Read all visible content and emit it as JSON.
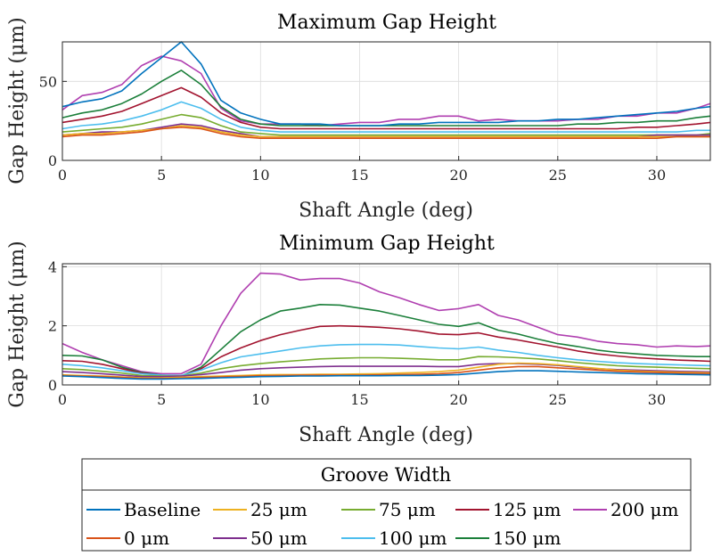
{
  "chart_data": [
    {
      "type": "line",
      "title": "Maximum Gap Height",
      "xlabel": "Shaft Angle (deg)",
      "ylabel": "Gap Height (μm)",
      "xlim": [
        0,
        32.7
      ],
      "ylim": [
        0,
        75
      ],
      "xticks": [
        0,
        5,
        10,
        15,
        20,
        25,
        30
      ],
      "yticks": [
        0,
        50
      ],
      "grid": true,
      "x": [
        0,
        1,
        2,
        3,
        4,
        5,
        6,
        7,
        8,
        9,
        10,
        11,
        12,
        13,
        14,
        15,
        16,
        17,
        18,
        19,
        20,
        21,
        22,
        23,
        24,
        25,
        26,
        27,
        28,
        29,
        30,
        31,
        32,
        32.7
      ],
      "series": [
        {
          "name": "Baseline",
          "color": "#0072BD",
          "values": [
            34,
            37,
            39,
            44,
            55,
            65,
            75,
            61,
            38,
            30,
            26,
            23,
            23,
            23,
            22,
            22,
            22,
            23,
            23,
            24,
            24,
            24,
            24,
            25,
            25,
            26,
            26,
            27,
            28,
            29,
            30,
            31,
            33,
            34
          ]
        },
        {
          "name": "0 μm",
          "color": "#D95319",
          "values": [
            15,
            16,
            16,
            17,
            18,
            20,
            21,
            20,
            17,
            15,
            14,
            14,
            14,
            14,
            14,
            14,
            14,
            14,
            14,
            14,
            14,
            14,
            14,
            14,
            14,
            14,
            14,
            14,
            14,
            14,
            14,
            15,
            15,
            15
          ]
        },
        {
          "name": "25 μm",
          "color": "#EDB120",
          "values": [
            16,
            17,
            17,
            18,
            19,
            20,
            22,
            21,
            18,
            16,
            15,
            15,
            15,
            15,
            15,
            15,
            15,
            15,
            15,
            15,
            15,
            15,
            15,
            15,
            15,
            15,
            15,
            15,
            15,
            15,
            15,
            15,
            15,
            15
          ]
        },
        {
          "name": "50 μm",
          "color": "#7E2F8E",
          "values": [
            16,
            17,
            18,
            18,
            19,
            21,
            23,
            22,
            19,
            17,
            15,
            15,
            15,
            15,
            15,
            15,
            15,
            15,
            15,
            15,
            15,
            15,
            15,
            15,
            15,
            15,
            15,
            15,
            15,
            15,
            16,
            16,
            16,
            16
          ]
        },
        {
          "name": "75 μm",
          "color": "#77AC30",
          "values": [
            18,
            19,
            20,
            21,
            23,
            26,
            29,
            27,
            22,
            18,
            17,
            16,
            16,
            16,
            16,
            16,
            16,
            16,
            16,
            16,
            16,
            16,
            16,
            16,
            16,
            16,
            16,
            16,
            16,
            16,
            16,
            16,
            16,
            17
          ]
        },
        {
          "name": "100 μm",
          "color": "#4DBEEE",
          "values": [
            20,
            22,
            23,
            25,
            28,
            32,
            37,
            33,
            26,
            21,
            19,
            18,
            18,
            18,
            18,
            18,
            18,
            18,
            18,
            18,
            18,
            18,
            18,
            18,
            18,
            18,
            18,
            18,
            18,
            18,
            18,
            18,
            19,
            19
          ]
        },
        {
          "name": "125 μm",
          "color": "#A2142F",
          "values": [
            24,
            26,
            28,
            31,
            36,
            41,
            46,
            40,
            30,
            24,
            21,
            20,
            20,
            20,
            20,
            20,
            20,
            20,
            20,
            20,
            20,
            20,
            20,
            20,
            20,
            20,
            20,
            20,
            20,
            21,
            21,
            22,
            23,
            24
          ]
        },
        {
          "name": "150 μm",
          "color": "#1B7F3A",
          "values": [
            27,
            30,
            32,
            36,
            42,
            50,
            57,
            48,
            34,
            26,
            23,
            22,
            22,
            22,
            22,
            22,
            22,
            22,
            22,
            22,
            22,
            22,
            22,
            22,
            22,
            22,
            23,
            23,
            24,
            24,
            25,
            25,
            27,
            28
          ]
        },
        {
          "name": "200 μm",
          "color": "#B03FB0",
          "values": [
            32,
            41,
            43,
            48,
            60,
            66,
            63,
            55,
            33,
            25,
            23,
            23,
            23,
            22,
            23,
            24,
            24,
            26,
            26,
            28,
            28,
            25,
            26,
            25,
            25,
            25,
            26,
            26,
            28,
            28,
            30,
            30,
            33,
            36
          ]
        }
      ]
    },
    {
      "type": "line",
      "title": "Minimum Gap Height",
      "xlabel": "Shaft Angle (deg)",
      "ylabel": "Gap Height (μm)",
      "xlim": [
        0,
        32.7
      ],
      "ylim": [
        0,
        4.1
      ],
      "xticks": [
        0,
        5,
        10,
        15,
        20,
        25,
        30
      ],
      "yticks": [
        0,
        2,
        4
      ],
      "grid": true,
      "x": [
        0,
        1,
        2,
        3,
        4,
        5,
        6,
        7,
        8,
        9,
        10,
        11,
        12,
        13,
        14,
        15,
        16,
        17,
        18,
        19,
        20,
        21,
        22,
        23,
        24,
        25,
        26,
        27,
        28,
        29,
        30,
        31,
        32,
        32.7
      ],
      "series": [
        {
          "name": "Baseline",
          "color": "#0072BD",
          "values": [
            0.3,
            0.28,
            0.25,
            0.22,
            0.2,
            0.2,
            0.21,
            0.22,
            0.24,
            0.26,
            0.28,
            0.29,
            0.3,
            0.3,
            0.31,
            0.31,
            0.31,
            0.32,
            0.32,
            0.33,
            0.35,
            0.4,
            0.45,
            0.48,
            0.48,
            0.46,
            0.44,
            0.42,
            0.4,
            0.38,
            0.37,
            0.36,
            0.35,
            0.34
          ]
        },
        {
          "name": "0 μm",
          "color": "#D95319",
          "values": [
            0.32,
            0.3,
            0.28,
            0.25,
            0.22,
            0.22,
            0.23,
            0.25,
            0.27,
            0.29,
            0.31,
            0.32,
            0.33,
            0.33,
            0.33,
            0.33,
            0.34,
            0.35,
            0.36,
            0.38,
            0.42,
            0.5,
            0.58,
            0.62,
            0.62,
            0.58,
            0.54,
            0.5,
            0.46,
            0.44,
            0.42,
            0.4,
            0.39,
            0.38
          ]
        },
        {
          "name": "25 μm",
          "color": "#EDB120",
          "values": [
            0.34,
            0.32,
            0.3,
            0.27,
            0.24,
            0.24,
            0.26,
            0.28,
            0.3,
            0.32,
            0.34,
            0.35,
            0.35,
            0.36,
            0.36,
            0.37,
            0.38,
            0.4,
            0.42,
            0.45,
            0.5,
            0.6,
            0.7,
            0.74,
            0.72,
            0.68,
            0.62,
            0.56,
            0.5,
            0.47,
            0.45,
            0.43,
            0.42,
            0.41
          ]
        },
        {
          "name": "50 μm",
          "color": "#7E2F8E",
          "values": [
            0.45,
            0.42,
            0.38,
            0.33,
            0.28,
            0.28,
            0.3,
            0.35,
            0.42,
            0.5,
            0.55,
            0.58,
            0.6,
            0.62,
            0.63,
            0.63,
            0.63,
            0.63,
            0.63,
            0.62,
            0.62,
            0.7,
            0.72,
            0.72,
            0.7,
            0.66,
            0.6,
            0.55,
            0.52,
            0.5,
            0.48,
            0.46,
            0.45,
            0.44
          ]
        },
        {
          "name": "75 μm",
          "color": "#77AC30",
          "values": [
            0.55,
            0.52,
            0.46,
            0.4,
            0.32,
            0.3,
            0.3,
            0.4,
            0.55,
            0.65,
            0.72,
            0.78,
            0.83,
            0.88,
            0.9,
            0.92,
            0.92,
            0.9,
            0.88,
            0.85,
            0.85,
            0.96,
            0.95,
            0.92,
            0.88,
            0.82,
            0.75,
            0.7,
            0.65,
            0.62,
            0.6,
            0.58,
            0.56,
            0.55
          ]
        },
        {
          "name": "100 μm",
          "color": "#4DBEEE",
          "values": [
            0.7,
            0.65,
            0.58,
            0.48,
            0.38,
            0.33,
            0.32,
            0.5,
            0.75,
            0.95,
            1.05,
            1.15,
            1.25,
            1.32,
            1.36,
            1.37,
            1.37,
            1.35,
            1.3,
            1.25,
            1.22,
            1.28,
            1.18,
            1.1,
            1.0,
            0.92,
            0.85,
            0.8,
            0.75,
            0.72,
            0.7,
            0.68,
            0.66,
            0.65
          ]
        },
        {
          "name": "125 μm",
          "color": "#A2142F",
          "values": [
            0.82,
            0.8,
            0.7,
            0.55,
            0.4,
            0.32,
            0.3,
            0.55,
            0.95,
            1.25,
            1.5,
            1.7,
            1.85,
            1.98,
            2.0,
            1.98,
            1.95,
            1.9,
            1.82,
            1.72,
            1.7,
            1.76,
            1.62,
            1.52,
            1.4,
            1.28,
            1.15,
            1.05,
            0.98,
            0.92,
            0.88,
            0.84,
            0.82,
            0.8
          ]
        },
        {
          "name": "150 μm",
          "color": "#1B7F3A",
          "values": [
            1.0,
            0.98,
            0.85,
            0.6,
            0.42,
            0.33,
            0.3,
            0.6,
            1.2,
            1.8,
            2.2,
            2.5,
            2.6,
            2.72,
            2.7,
            2.6,
            2.5,
            2.35,
            2.2,
            2.05,
            1.98,
            2.1,
            1.85,
            1.72,
            1.55,
            1.4,
            1.3,
            1.18,
            1.1,
            1.05,
            1.0,
            0.98,
            0.96,
            0.96
          ]
        },
        {
          "name": "200 μm",
          "color": "#B03FB0",
          "values": [
            1.4,
            1.1,
            0.85,
            0.65,
            0.45,
            0.38,
            0.38,
            0.7,
            2.0,
            3.1,
            3.78,
            3.75,
            3.55,
            3.6,
            3.6,
            3.45,
            3.15,
            2.95,
            2.72,
            2.52,
            2.58,
            2.72,
            2.35,
            2.2,
            1.95,
            1.7,
            1.62,
            1.48,
            1.4,
            1.36,
            1.28,
            1.32,
            1.3,
            1.32
          ]
        }
      ]
    }
  ],
  "legend": {
    "title": "Groove Width",
    "entries": [
      {
        "label": "Baseline",
        "color": "#0072BD"
      },
      {
        "label": "25 μm",
        "color": "#EDB120"
      },
      {
        "label": "75 μm",
        "color": "#77AC30"
      },
      {
        "label": "125 μm",
        "color": "#A2142F"
      },
      {
        "label": "200 μm",
        "color": "#B03FB0"
      },
      {
        "label": "0 μm",
        "color": "#D95319"
      },
      {
        "label": "50 μm",
        "color": "#7E2F8E"
      },
      {
        "label": "100 μm",
        "color": "#4DBEEE"
      },
      {
        "label": "150 μm",
        "color": "#1B7F3A"
      }
    ]
  }
}
